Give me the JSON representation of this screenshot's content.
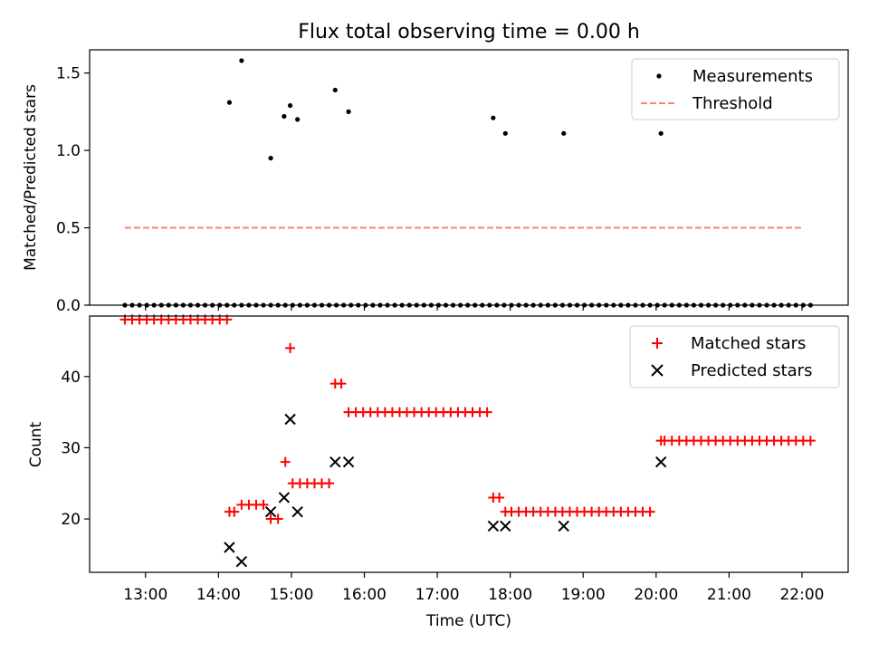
{
  "chart_data": [
    {
      "type": "scatter",
      "title": "Flux total observing time = 0.00 h",
      "xlabel": "",
      "ylabel": "Matched/Predicted stars",
      "xlim": [
        "12:14",
        "22:38"
      ],
      "ylim": [
        0,
        1.65
      ],
      "yticks": [
        0,
        0.5,
        1.0,
        1.5
      ],
      "ytick_labels": [
        "0.0",
        "0.5",
        "1.0",
        "1.5"
      ],
      "legend_position": "top-right",
      "grid": false,
      "series": [
        {
          "name": "Measurements",
          "kind": "scatter",
          "marker": "dot",
          "color": "#000000",
          "x": [
            "12:43",
            "12:49",
            "12:55",
            "13:01",
            "13:07",
            "13:13",
            "13:19",
            "13:25",
            "13:31",
            "13:37",
            "13:43",
            "13:49",
            "13:55",
            "14:01",
            "14:07",
            "14:13",
            "14:19",
            "14:25",
            "14:31",
            "14:37",
            "14:43",
            "14:49",
            "14:55",
            "15:01",
            "15:07",
            "15:13",
            "15:19",
            "15:25",
            "15:31",
            "15:37",
            "15:43",
            "15:49",
            "15:55",
            "16:01",
            "16:07",
            "16:13",
            "16:19",
            "16:25",
            "16:31",
            "16:37",
            "16:43",
            "16:49",
            "16:55",
            "17:01",
            "17:07",
            "17:13",
            "17:19",
            "17:25",
            "17:31",
            "17:37",
            "17:43",
            "17:49",
            "17:55",
            "18:01",
            "18:07",
            "18:13",
            "18:19",
            "18:25",
            "18:31",
            "18:37",
            "18:43",
            "18:49",
            "18:55",
            "19:01",
            "19:07",
            "19:13",
            "19:19",
            "19:25",
            "19:31",
            "19:37",
            "19:43",
            "19:49",
            "19:55",
            "20:01",
            "20:07",
            "20:13",
            "20:19",
            "20:25",
            "20:31",
            "20:37",
            "20:43",
            "20:49",
            "20:55",
            "21:01",
            "21:07",
            "21:13",
            "21:19",
            "21:25",
            "21:31",
            "21:37",
            "21:43",
            "21:49",
            "21:55",
            "22:01",
            "22:07",
            "14:09",
            "14:19",
            "14:43",
            "14:54",
            "14:59",
            "15:05",
            "15:36",
            "15:47",
            "17:46",
            "17:56",
            "18:44",
            "20:04"
          ],
          "y": [
            0,
            0,
            0,
            0,
            0,
            0,
            0,
            0,
            0,
            0,
            0,
            0,
            0,
            0,
            0,
            0,
            0,
            0,
            0,
            0,
            0,
            0,
            0,
            0,
            0,
            0,
            0,
            0,
            0,
            0,
            0,
            0,
            0,
            0,
            0,
            0,
            0,
            0,
            0,
            0,
            0,
            0,
            0,
            0,
            0,
            0,
            0,
            0,
            0,
            0,
            0,
            0,
            0,
            0,
            0,
            0,
            0,
            0,
            0,
            0,
            0,
            0,
            0,
            0,
            0,
            0,
            0,
            0,
            0,
            0,
            0,
            0,
            0,
            0,
            0,
            0,
            0,
            0,
            0,
            0,
            0,
            0,
            0,
            0,
            0,
            0,
            0,
            0,
            0,
            0,
            0,
            0,
            0,
            0,
            0,
            1.31,
            1.58,
            0.95,
            1.22,
            1.29,
            1.2,
            1.39,
            1.25,
            1.21,
            1.11,
            1.11,
            1.11
          ]
        },
        {
          "name": "Threshold",
          "kind": "line",
          "style": "dashed",
          "color": "#ff7f7f",
          "x": [
            "12:43",
            "22:00"
          ],
          "y": [
            0.5,
            0.5
          ]
        }
      ]
    },
    {
      "type": "scatter",
      "title": "",
      "xlabel": "Time (UTC)",
      "ylabel": "Count",
      "xlim": [
        "12:14",
        "22:38"
      ],
      "ylim": [
        12.5,
        48.5
      ],
      "yticks": [
        20,
        30,
        40
      ],
      "ytick_labels": [
        "20",
        "30",
        "40"
      ],
      "xticks": [
        "13:00",
        "14:00",
        "15:00",
        "16:00",
        "17:00",
        "18:00",
        "19:00",
        "20:00",
        "21:00",
        "22:00"
      ],
      "legend_position": "top-right",
      "grid": false,
      "series": [
        {
          "name": "Matched stars",
          "kind": "scatter",
          "marker": "plus",
          "color": "#ff0000",
          "x": [
            "12:43",
            "12:49",
            "12:55",
            "13:01",
            "13:07",
            "13:13",
            "13:19",
            "13:25",
            "13:31",
            "13:37",
            "13:43",
            "13:49",
            "13:55",
            "14:01",
            "14:07",
            "14:09",
            "14:13",
            "14:19",
            "14:25",
            "14:31",
            "14:37",
            "14:43",
            "14:49",
            "14:55",
            "14:59",
            "15:01",
            "15:07",
            "15:13",
            "15:19",
            "15:25",
            "15:31",
            "15:36",
            "15:41",
            "15:47",
            "15:53",
            "15:59",
            "16:05",
            "16:11",
            "16:17",
            "16:23",
            "16:29",
            "16:35",
            "16:41",
            "16:47",
            "16:53",
            "16:59",
            "17:05",
            "17:11",
            "17:17",
            "17:23",
            "17:29",
            "17:35",
            "17:41",
            "17:46",
            "17:51",
            "17:56",
            "18:01",
            "18:07",
            "18:13",
            "18:19",
            "18:25",
            "18:31",
            "18:37",
            "18:43",
            "18:49",
            "18:55",
            "19:01",
            "19:07",
            "19:13",
            "19:19",
            "19:25",
            "19:31",
            "19:37",
            "19:43",
            "19:49",
            "19:55",
            "20:04",
            "20:07",
            "20:13",
            "20:19",
            "20:25",
            "20:31",
            "20:37",
            "20:43",
            "20:49",
            "20:55",
            "21:01",
            "21:07",
            "21:13",
            "21:19",
            "21:25",
            "21:31",
            "21:37",
            "21:43",
            "21:49",
            "21:55",
            "22:01",
            "22:07"
          ],
          "y": [
            48,
            48,
            48,
            48,
            48,
            48,
            48,
            48,
            48,
            48,
            48,
            48,
            48,
            48,
            48,
            21,
            21,
            22,
            22,
            22,
            22,
            20,
            20,
            28,
            44,
            25,
            25,
            25,
            25,
            25,
            25,
            39,
            39,
            35,
            35,
            35,
            35,
            35,
            35,
            35,
            35,
            35,
            35,
            35,
            35,
            35,
            35,
            35,
            35,
            35,
            35,
            35,
            35,
            23,
            23,
            21,
            21,
            21,
            21,
            21,
            21,
            21,
            21,
            21,
            21,
            21,
            21,
            21,
            21,
            21,
            21,
            21,
            21,
            21,
            21,
            21,
            31,
            31,
            31,
            31,
            31,
            31,
            31,
            31,
            31,
            31,
            31,
            31,
            31,
            31,
            31,
            31,
            31,
            31,
            31,
            31,
            31,
            31
          ]
        },
        {
          "name": "Predicted stars",
          "kind": "scatter",
          "marker": "x",
          "color": "#000000",
          "x": [
            "14:09",
            "14:19",
            "14:43",
            "14:54",
            "14:59",
            "15:05",
            "15:36",
            "15:47",
            "17:46",
            "17:56",
            "18:44",
            "20:04"
          ],
          "y": [
            16,
            14,
            21,
            23,
            34,
            21,
            28,
            28,
            19,
            19,
            19,
            28
          ]
        }
      ]
    }
  ]
}
